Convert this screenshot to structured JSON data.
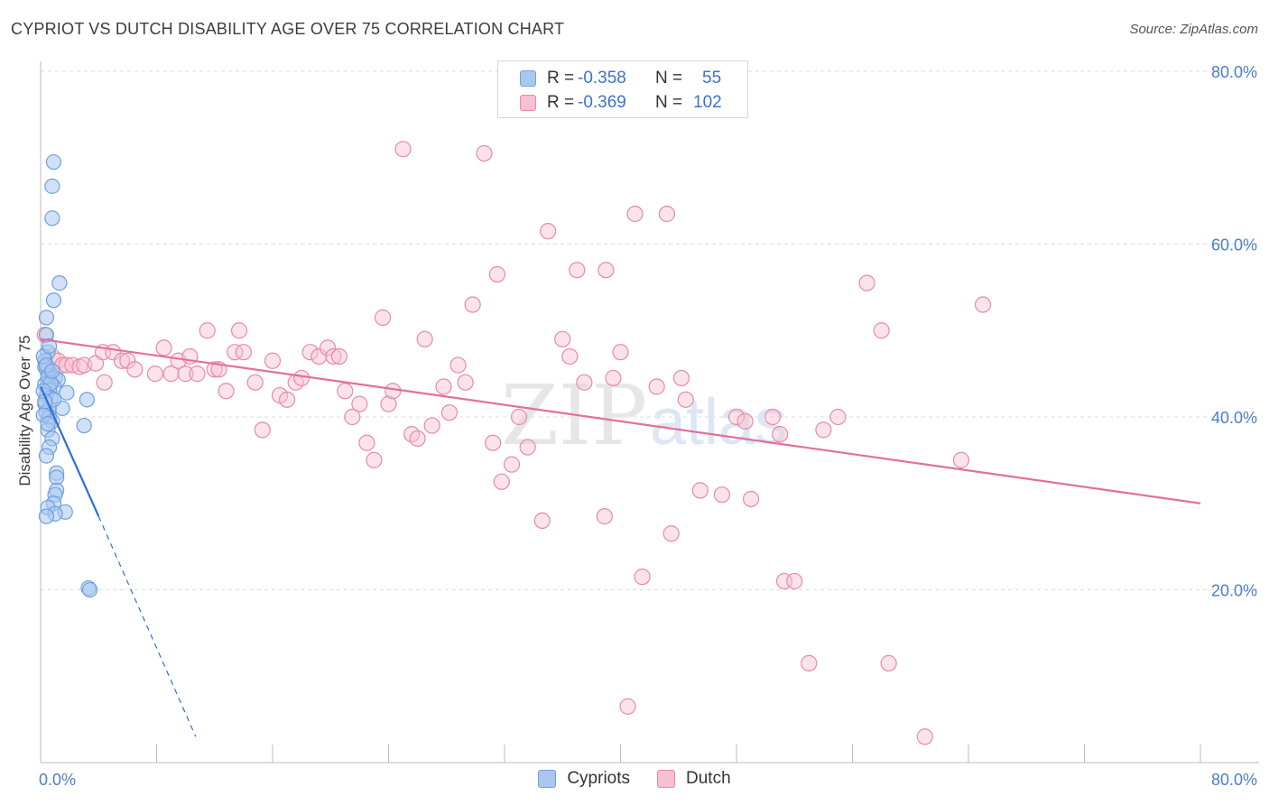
{
  "header": {
    "title": "CYPRIOT VS DUTCH DISABILITY AGE OVER 75 CORRELATION CHART",
    "source": "Source: ZipAtlas.com"
  },
  "legend": {
    "rows": [
      {
        "r_label": "R =",
        "r_value": "-0.358",
        "n_label": "N =",
        "n_value": "55",
        "color": "#a9c8f0",
        "border": "#6f9fde"
      },
      {
        "r_label": "R =",
        "r_value": "-0.369",
        "n_label": "N =",
        "n_value": "102",
        "color": "#f8c0d0",
        "border": "#e88aa8"
      }
    ]
  },
  "bottom_legend": [
    {
      "label": "Cypriots",
      "color": "#a9c8f0",
      "border": "#6f9fde"
    },
    {
      "label": "Dutch",
      "color": "#f8c0d0",
      "border": "#e88aa8"
    }
  ],
  "watermark": {
    "part1": "ZIP",
    "part2": "atlas"
  },
  "chart_data": {
    "type": "scatter",
    "title": "CYPRIOT VS DUTCH DISABILITY AGE OVER 75 CORRELATION CHART",
    "ylabel": "Disability Age Over 75",
    "xlabel": "",
    "xlim": [
      0,
      80
    ],
    "ylim": [
      0,
      80
    ],
    "x_ticks": [
      "0.0%",
      "80.0%"
    ],
    "y_ticks": [
      {
        "value": 20,
        "label": "20.0%"
      },
      {
        "value": 40,
        "label": "40.0%"
      },
      {
        "value": 60,
        "label": "60.0%"
      },
      {
        "value": 80,
        "label": "80.0%"
      }
    ],
    "grid": true,
    "series": [
      {
        "name": "Cypriots",
        "color": "#6f9fde",
        "fill": "#a9c8f0",
        "line_color": "#2b6fd6",
        "trend": {
          "x0": 0,
          "y0": 43.5,
          "x1": 4.0,
          "y1": 28.5,
          "dash_to_x": 10.7,
          "dash_to_y": 3.0
        },
        "points": [
          [
            0.9,
            69.5
          ],
          [
            0.8,
            66.7
          ],
          [
            0.8,
            63.0
          ],
          [
            1.3,
            55.5
          ],
          [
            0.9,
            53.5
          ],
          [
            0.4,
            51.5
          ],
          [
            0.4,
            49.5
          ],
          [
            0.5,
            47.5
          ],
          [
            0.3,
            46.5
          ],
          [
            0.4,
            45.5
          ],
          [
            0.6,
            45.0
          ],
          [
            1.0,
            44.5
          ],
          [
            1.2,
            44.3
          ],
          [
            0.5,
            44.0
          ],
          [
            0.3,
            43.8
          ],
          [
            0.9,
            43.5
          ],
          [
            0.6,
            43.2
          ],
          [
            1.8,
            42.8
          ],
          [
            0.4,
            42.5
          ],
          [
            0.7,
            42.2
          ],
          [
            3.2,
            42.0
          ],
          [
            0.3,
            41.5
          ],
          [
            0.6,
            41.0
          ],
          [
            1.5,
            41.0
          ],
          [
            0.4,
            40.5
          ],
          [
            0.6,
            40.0
          ],
          [
            0.8,
            39.5
          ],
          [
            3.0,
            39.0
          ],
          [
            0.5,
            38.5
          ],
          [
            0.8,
            37.5
          ],
          [
            0.6,
            36.5
          ],
          [
            0.4,
            35.5
          ],
          [
            1.1,
            33.5
          ],
          [
            1.1,
            33.0
          ],
          [
            1.1,
            31.5
          ],
          [
            1.0,
            31.0
          ],
          [
            0.9,
            30.0
          ],
          [
            0.5,
            29.5
          ],
          [
            1.7,
            29.0
          ],
          [
            1.0,
            28.8
          ],
          [
            0.4,
            28.5
          ],
          [
            3.3,
            20.2
          ],
          [
            3.4,
            20.0
          ],
          [
            0.3,
            45.8
          ],
          [
            0.5,
            44.7
          ],
          [
            0.7,
            43.9
          ],
          [
            0.2,
            43.0
          ],
          [
            0.9,
            42.0
          ],
          [
            0.2,
            40.2
          ],
          [
            0.5,
            39.2
          ],
          [
            0.2,
            47.0
          ],
          [
            0.6,
            48.2
          ],
          [
            0.4,
            46.0
          ],
          [
            0.8,
            45.3
          ],
          [
            0.3,
            41.8
          ]
        ]
      },
      {
        "name": "Dutch",
        "color": "#e88aa8",
        "fill": "#f8c0d0",
        "line_color": "#e2709a",
        "trend": {
          "x0": 0,
          "y0": 49.0,
          "x1": 80,
          "y1": 30.0
        },
        "points": [
          [
            0.3,
            49.5
          ],
          [
            0.8,
            47.0
          ],
          [
            1.2,
            46.5
          ],
          [
            1.5,
            46.0
          ],
          [
            1.8,
            46.0
          ],
          [
            2.2,
            46.0
          ],
          [
            2.7,
            45.8
          ],
          [
            3.0,
            46.0
          ],
          [
            3.8,
            46.2
          ],
          [
            4.3,
            47.5
          ],
          [
            5.0,
            47.5
          ],
          [
            4.4,
            44.0
          ],
          [
            5.6,
            46.5
          ],
          [
            6.0,
            46.5
          ],
          [
            6.5,
            45.5
          ],
          [
            7.9,
            45.0
          ],
          [
            8.5,
            48.0
          ],
          [
            9.0,
            45.0
          ],
          [
            9.5,
            46.5
          ],
          [
            10.0,
            45.0
          ],
          [
            10.3,
            47.0
          ],
          [
            10.8,
            45.0
          ],
          [
            11.5,
            50.0
          ],
          [
            12.0,
            45.5
          ],
          [
            12.3,
            45.5
          ],
          [
            12.8,
            43.0
          ],
          [
            13.4,
            47.5
          ],
          [
            13.7,
            50.0
          ],
          [
            14.0,
            47.5
          ],
          [
            14.8,
            44.0
          ],
          [
            15.3,
            38.5
          ],
          [
            16.0,
            46.5
          ],
          [
            16.5,
            42.5
          ],
          [
            17.0,
            42.0
          ],
          [
            17.6,
            44.0
          ],
          [
            18.0,
            44.5
          ],
          [
            18.6,
            47.5
          ],
          [
            19.2,
            47.0
          ],
          [
            19.8,
            48.0
          ],
          [
            20.2,
            47.0
          ],
          [
            20.6,
            47.0
          ],
          [
            21.0,
            43.0
          ],
          [
            21.5,
            40.0
          ],
          [
            22.0,
            41.5
          ],
          [
            22.5,
            37.0
          ],
          [
            23.0,
            35.0
          ],
          [
            23.6,
            51.5
          ],
          [
            24.0,
            41.5
          ],
          [
            24.3,
            43.0
          ],
          [
            25.0,
            71.0
          ],
          [
            25.6,
            38.0
          ],
          [
            26.0,
            37.5
          ],
          [
            26.5,
            49.0
          ],
          [
            27.0,
            39.0
          ],
          [
            27.8,
            43.5
          ],
          [
            28.2,
            40.5
          ],
          [
            28.8,
            46.0
          ],
          [
            29.3,
            44.0
          ],
          [
            29.8,
            53.0
          ],
          [
            30.6,
            70.5
          ],
          [
            31.2,
            37.0
          ],
          [
            31.5,
            56.5
          ],
          [
            31.8,
            32.5
          ],
          [
            32.5,
            34.5
          ],
          [
            33.0,
            40.0
          ],
          [
            33.6,
            36.5
          ],
          [
            34.6,
            28.0
          ],
          [
            35.0,
            61.5
          ],
          [
            36.0,
            49.0
          ],
          [
            36.5,
            47.0
          ],
          [
            37.0,
            57.0
          ],
          [
            37.5,
            44.0
          ],
          [
            38.9,
            28.5
          ],
          [
            39.0,
            57.0
          ],
          [
            39.5,
            44.5
          ],
          [
            40.0,
            47.5
          ],
          [
            40.5,
            6.5
          ],
          [
            41.0,
            63.5
          ],
          [
            41.5,
            21.5
          ],
          [
            42.5,
            43.5
          ],
          [
            43.2,
            63.5
          ],
          [
            43.5,
            26.5
          ],
          [
            44.2,
            44.5
          ],
          [
            44.5,
            42.0
          ],
          [
            45.5,
            31.5
          ],
          [
            47.0,
            31.0
          ],
          [
            48.0,
            40.0
          ],
          [
            48.6,
            39.5
          ],
          [
            49.0,
            30.5
          ],
          [
            50.5,
            40.0
          ],
          [
            51.0,
            38.0
          ],
          [
            51.3,
            21.0
          ],
          [
            52.0,
            21.0
          ],
          [
            53.0,
            11.5
          ],
          [
            54.0,
            38.5
          ],
          [
            57.0,
            55.5
          ],
          [
            58.0,
            50.0
          ],
          [
            58.5,
            11.5
          ],
          [
            61.0,
            3.0
          ],
          [
            63.5,
            35.0
          ],
          [
            65.0,
            53.0
          ],
          [
            55.0,
            40.0
          ]
        ]
      }
    ]
  }
}
